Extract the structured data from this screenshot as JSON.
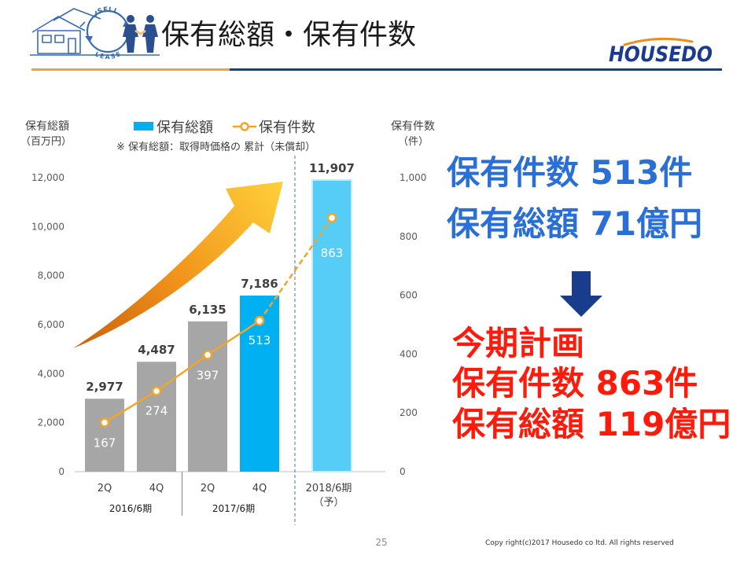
{
  "header": {
    "title": "保有総額・保有件数",
    "left_logo": {
      "top_text": "SELL",
      "bottom_text": "LEASE"
    },
    "right_logo": {
      "text": "HOUSEDO"
    }
  },
  "icons": {
    "left_logo": "sell-lease-house-icon",
    "trend": "up-right-arrow-icon",
    "transition": "down-arrow-icon"
  },
  "colors": {
    "header_rule_left": "#f0a33a",
    "header_rule_right": "#1f3c88",
    "highlight_blue": "#2a6fd6",
    "highlight_red": "#ff1a0a",
    "down_arrow": "#1a3c8c",
    "logo_blue": "#1b3b8f",
    "logo_orange": "#f08c1e"
  },
  "chart_data": {
    "type": "bar+line",
    "categories": [
      "2Q",
      "4Q",
      "2Q",
      "4Q",
      "2018/6期"
    ],
    "forecast_suffix": "（予）",
    "category_groups": [
      {
        "label": "2016/6期",
        "span": [
          0,
          1
        ]
      },
      {
        "label": "2017/6期",
        "span": [
          2,
          3
        ]
      }
    ],
    "series": [
      {
        "name": "保有総額",
        "type": "bar",
        "axis": "left",
        "values": [
          2977,
          4487,
          6135,
          7186,
          11907
        ],
        "labels": [
          "2,977",
          "4,487",
          "6,135",
          "7,186",
          "11,907"
        ],
        "color": "#00b0f0",
        "bar_colors": [
          "#a6a6a6",
          "#a6a6a6",
          "#a6a6a6",
          "#00b0f0",
          "#55cdf6"
        ]
      },
      {
        "name": "保有件数",
        "type": "line",
        "axis": "right",
        "values": [
          167,
          274,
          397,
          513,
          863
        ],
        "labels": [
          "167",
          "274",
          "397",
          "513",
          "863"
        ],
        "color": "#f2a52b",
        "last_segment": "dashed"
      }
    ],
    "left_axis": {
      "title": "保有総額",
      "unit": "（百万円）",
      "ylim": [
        0,
        12000
      ],
      "ticks": [
        "0",
        "2,000",
        "4,000",
        "6,000",
        "8,000",
        "10,000",
        "12,000"
      ]
    },
    "right_axis": {
      "title": "保有件数",
      "unit": "（件）",
      "ylim": [
        0,
        1000
      ],
      "ticks": [
        "0",
        "200",
        "400",
        "600",
        "800",
        "1,000"
      ]
    },
    "note": "※ 保有総額：取得時価格の 累計（未償却）",
    "legend_placement": "top",
    "grid": false
  },
  "summary": {
    "current": [
      "保有件数 513件",
      "保有総額 71億円"
    ],
    "plan_title": "今期計画",
    "plan": [
      "保有件数 863件",
      "保有総額 119億円"
    ]
  },
  "footer": {
    "page_number": "25",
    "copyright": "Copy right(c)2017 Housedo co ltd. All rights reserved"
  }
}
